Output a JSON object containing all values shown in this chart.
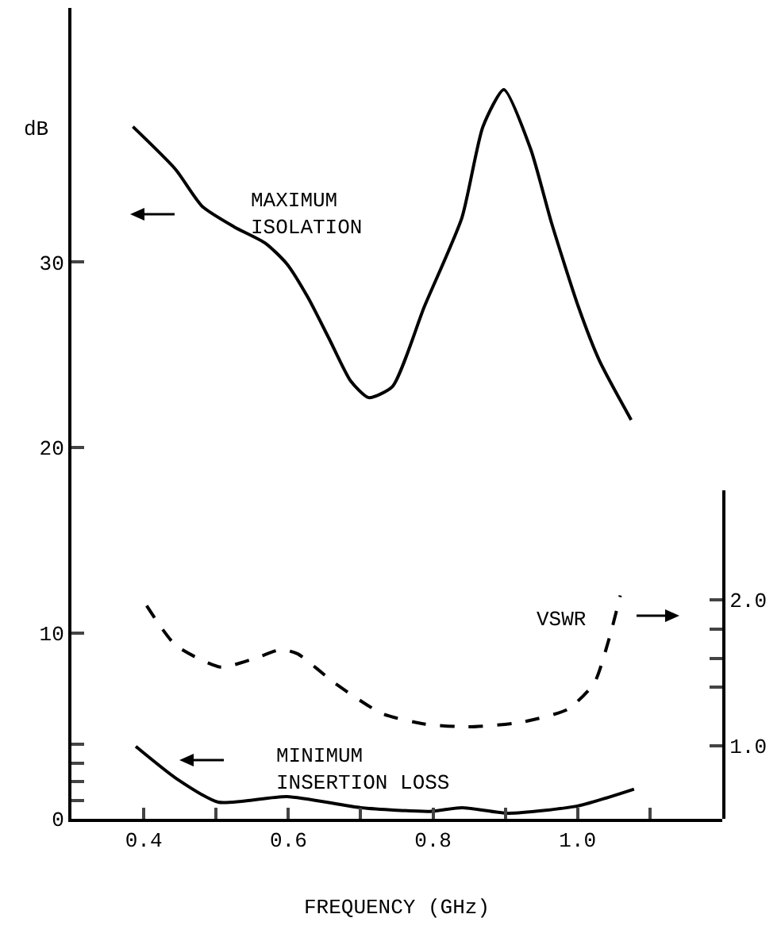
{
  "chart_data": {
    "type": "line",
    "xlabel": "FREQUENCY (GHz)",
    "ylabel": "dB",
    "xlim": [
      0.3,
      1.2
    ],
    "xticks": [
      0.4,
      {
        "value": 0.5,
        "label": null
      },
      0.6,
      {
        "value": 0.7,
        "label": null
      },
      0.8,
      {
        "value": 0.9,
        "label": null
      },
      {
        "value": 1,
        "label": "1.0"
      },
      {
        "value": 1.1,
        "label": null
      }
    ],
    "ylim": [
      0,
      43.7
    ],
    "yticks": [
      0,
      {
        "value": 1,
        "label": null
      },
      {
        "value": 2,
        "label": null
      },
      {
        "value": 3,
        "label": null
      },
      {
        "value": 4,
        "label": null
      },
      10,
      20,
      30
    ],
    "y2lim": [
      0.5,
      2.75
    ],
    "y2ticks": [
      {
        "value": 1,
        "label": "1.0"
      },
      {
        "value": 1.4,
        "label": null
      },
      {
        "value": 1.6,
        "label": null
      },
      {
        "value": 1.8,
        "label": null
      },
      {
        "value": 2,
        "label": "2.0"
      }
    ],
    "grid": false,
    "legend": false,
    "marker": "none",
    "series": [
      {
        "name": "MAXIMUM\nISOLATION",
        "color": "#000000",
        "line_style": "solid",
        "x": [
          0.385,
          0.444,
          0.481,
          0.525,
          0.569,
          0.598,
          0.627,
          0.656,
          0.686,
          0.711,
          0.744,
          0.788,
          0.84,
          0.869,
          0.898,
          0.935,
          0.964,
          1.001,
          1.03,
          1.074
        ],
        "values": [
          37.3,
          35.0,
          33.0,
          31.9,
          31.0,
          29.9,
          28.1,
          25.9,
          23.6,
          22.7,
          23.3,
          27.6,
          32.4,
          37.3,
          39.3,
          36.1,
          32.1,
          27.6,
          24.7,
          21.5
        ]
      },
      {
        "name": "VSWR",
        "color": "#000000",
        "line_style": "dashed",
        "axis": "y2",
        "x": [
          0.404,
          0.444,
          0.506,
          0.554,
          0.59,
          0.613,
          0.664,
          0.73,
          0.788,
          0.847,
          0.92,
          0.986,
          1.023,
          1.045,
          1.059
        ],
        "values": [
          1.96,
          1.69,
          1.54,
          1.6,
          1.66,
          1.63,
          1.43,
          1.22,
          1.15,
          1.13,
          1.16,
          1.25,
          1.43,
          1.76,
          2.03
        ]
      },
      {
        "name": "MINIMUM\nINSERTION LOSS",
        "color": "#000000",
        "line_style": "solid",
        "x": [
          0.389,
          0.444,
          0.503,
          0.598,
          0.7,
          0.796,
          0.84,
          0.905,
          1.001,
          1.078
        ],
        "values": [
          3.9,
          2.2,
          0.9,
          1.2,
          0.6,
          0.4,
          0.6,
          0.3,
          0.7,
          1.6
        ]
      }
    ]
  }
}
